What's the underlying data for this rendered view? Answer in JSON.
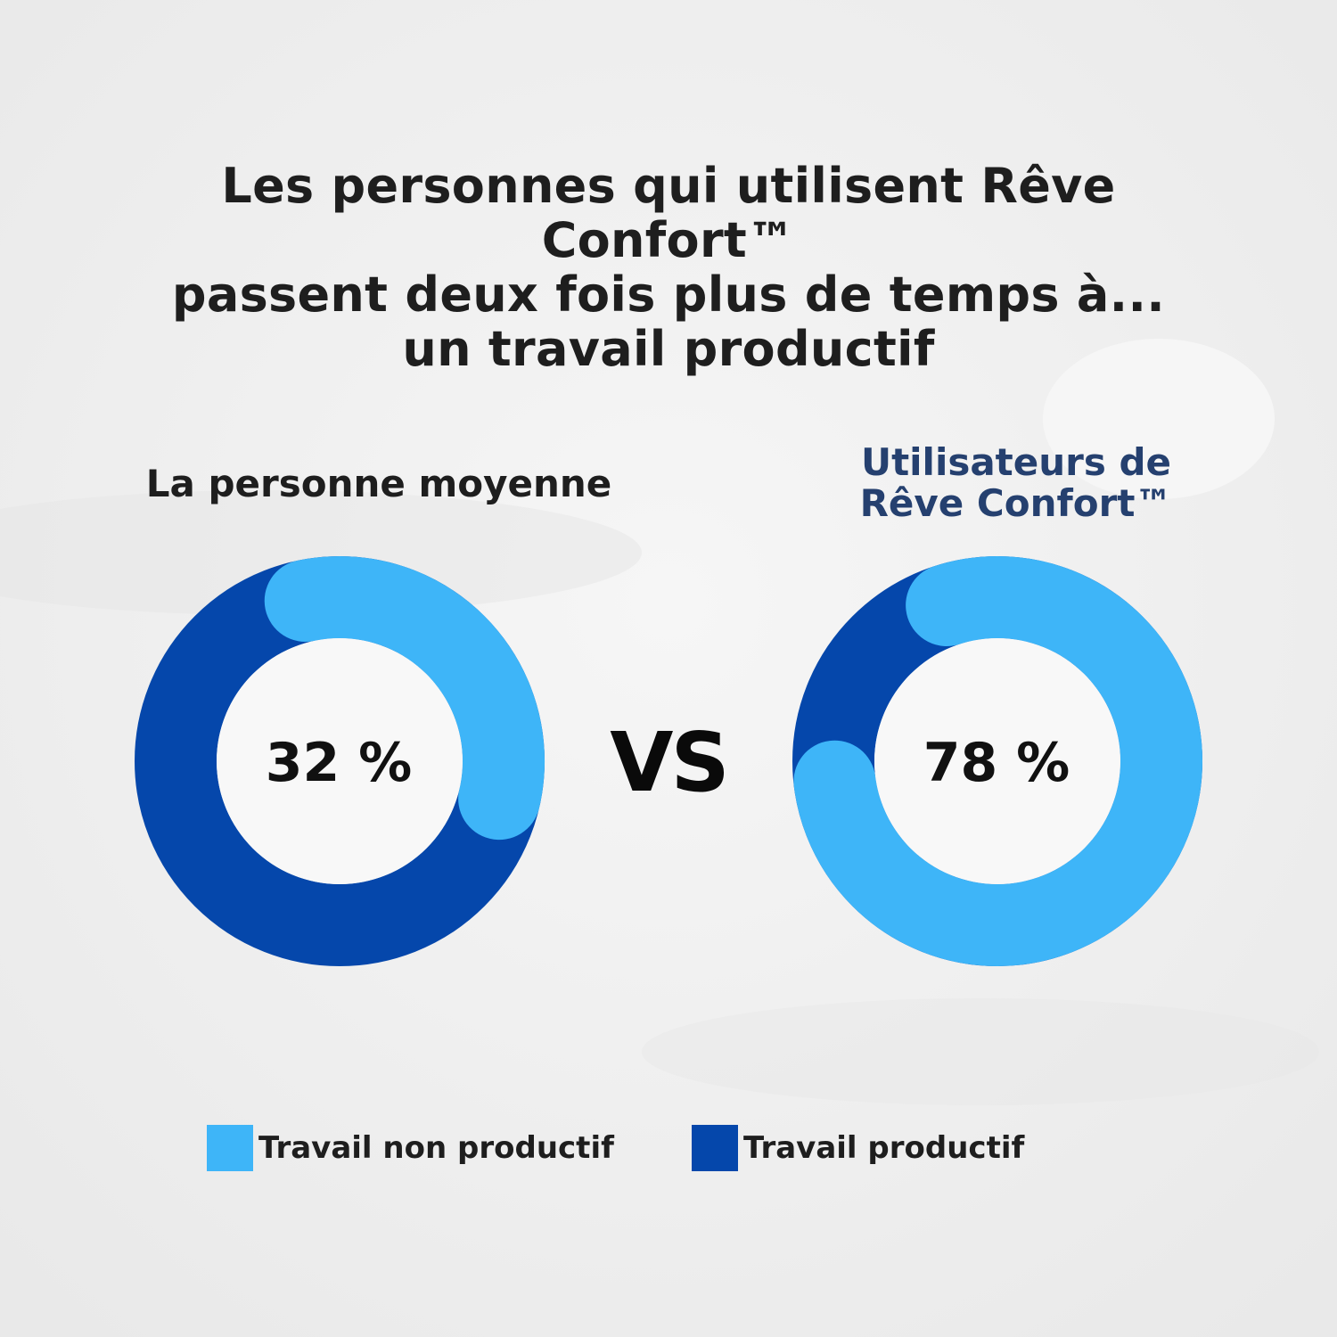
{
  "title_lines": [
    "Les personnes qui utilisent Rêve Confort™",
    "passent deux fois plus de temps à...",
    "un travail productif"
  ],
  "vs_text": "VS",
  "colors": {
    "non_productive": "#3eb5f8",
    "productive": "#0547ab",
    "title_text": "#1e1e1e",
    "accent_caption": "#25406f",
    "background": "#efefef"
  },
  "legend": [
    {
      "label": "Travail non productif",
      "color": "#3eb5f8"
    },
    {
      "label": "Travail productif",
      "color": "#0547ab"
    }
  ],
  "chart_data": [
    {
      "type": "pie",
      "title": "La personne moyenne",
      "center_label": "32 %",
      "categories": [
        "Travail non productif",
        "Travail productif"
      ],
      "values": [
        32,
        68
      ],
      "colors": [
        "#3eb5f8",
        "#0547ab"
      ]
    },
    {
      "type": "pie",
      "title_lines": [
        "Utilisateurs de",
        "Rêve Confort™"
      ],
      "center_label": "78 %",
      "categories": [
        "Travail non productif",
        "Travail productif"
      ],
      "values": [
        78,
        22
      ],
      "colors": [
        "#3eb5f8",
        "#0547ab"
      ]
    }
  ]
}
